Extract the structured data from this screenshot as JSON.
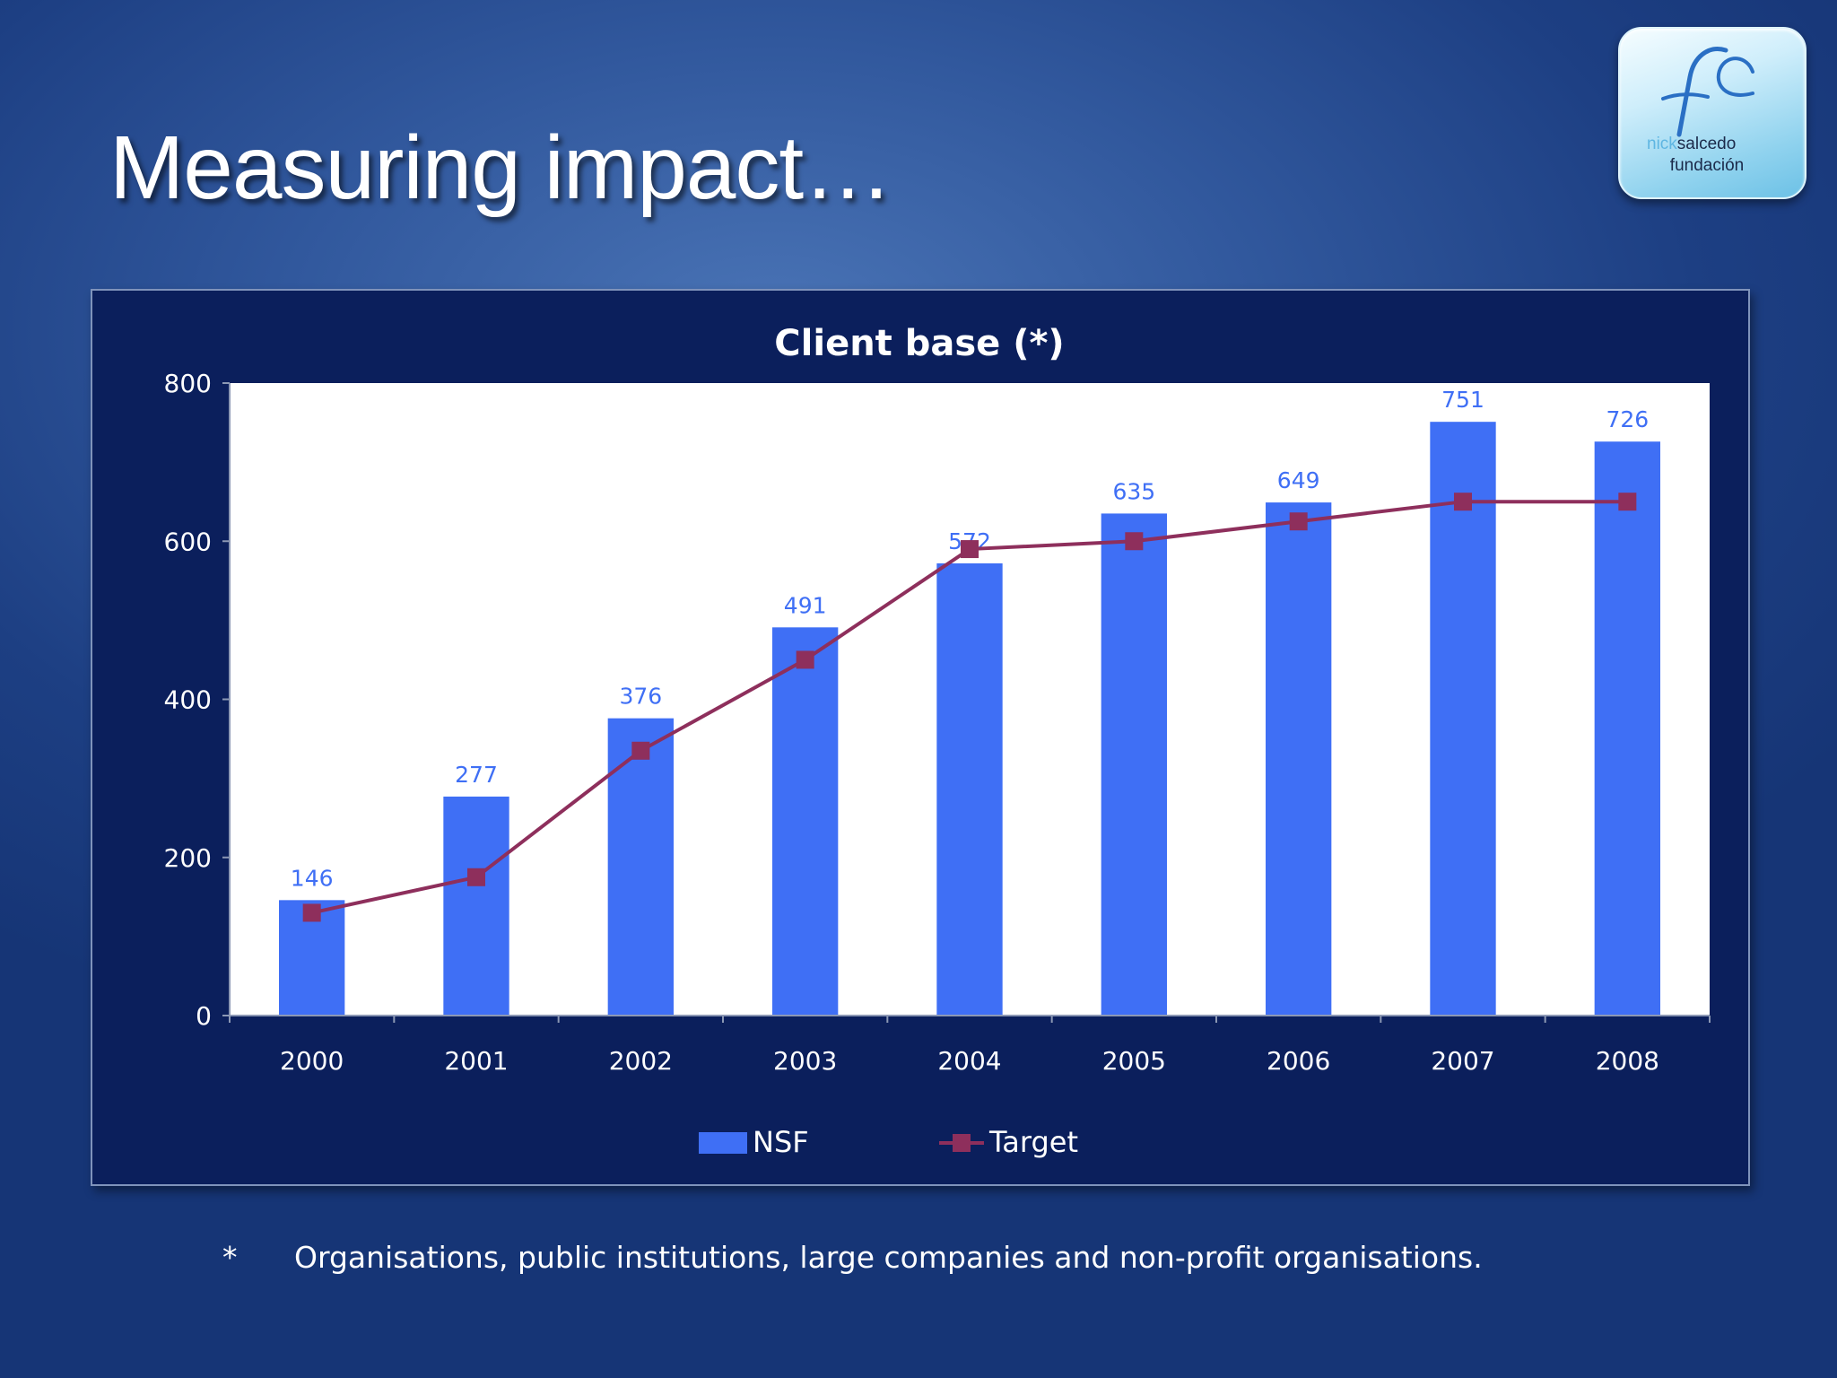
{
  "slide": {
    "title": "Measuring impact…",
    "footnote_marker": "*",
    "footnote": "Organisations, public institutions, large companies and non-profit organisations."
  },
  "logo": {
    "line1_faint": "nick",
    "line1": "salcedo",
    "line2": "fundación"
  },
  "colors": {
    "bar": "#3f6ff5",
    "bar_label": "#3f6ff5",
    "line": "#8e2f5c",
    "panel": "#0b1f5c",
    "plot_bg": "#ffffff"
  },
  "chart_data": {
    "type": "bar",
    "title": "Client base (*)",
    "categories": [
      "2000",
      "2001",
      "2002",
      "2003",
      "2004",
      "2005",
      "2006",
      "2007",
      "2008"
    ],
    "series": [
      {
        "name": "NSF",
        "type": "bar",
        "values": [
          146,
          277,
          376,
          491,
          572,
          635,
          649,
          751,
          726
        ],
        "data_labels": [
          "146",
          "277",
          "376",
          "491",
          "572",
          "635",
          "649",
          "751",
          "726"
        ]
      },
      {
        "name": "Target",
        "type": "line",
        "values": [
          130,
          175,
          335,
          450,
          590,
          600,
          625,
          650,
          650
        ]
      }
    ],
    "ylim": [
      0,
      800
    ],
    "yticks": [
      "0",
      "200",
      "400",
      "600",
      "800"
    ],
    "grid": false,
    "legend": "bottom",
    "xlabel": "",
    "ylabel": ""
  }
}
